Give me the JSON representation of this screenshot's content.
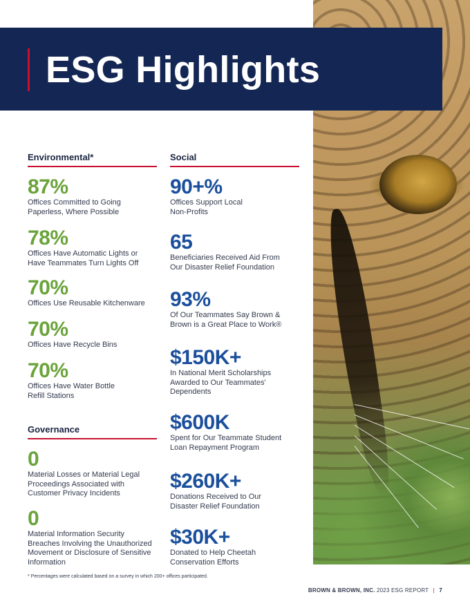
{
  "page": {
    "title": "ESG Highlights"
  },
  "environmental": {
    "heading": "Environmental*",
    "stats": [
      {
        "value": "87%",
        "label": "Offices Committed to Going Paperless, Where Possible"
      },
      {
        "value": "78%",
        "label": "Offices Have Automatic Lights or Have Teammates Turn Lights Off"
      },
      {
        "value": "70%",
        "label": "Offices Use Reusable Kitchenware"
      },
      {
        "value": "70%",
        "label": "Offices Have Recycle Bins"
      },
      {
        "value": "70%",
        "label": "Offices Have Water Bottle Refill Stations"
      }
    ]
  },
  "governance": {
    "heading": "Governance",
    "stats": [
      {
        "value": "0",
        "label": "Material Losses or Material Legal Proceedings Associated with Customer Privacy Incidents"
      },
      {
        "value": "0",
        "label": "Material Information Security Breaches Involving the Unauthorized Movement or Disclosure of Sensitive Information"
      }
    ]
  },
  "social": {
    "heading": "Social",
    "stats": [
      {
        "value": "90+%",
        "label": "Offices Support Local Non-Profits"
      },
      {
        "value": "65",
        "label": "Beneficiaries Received Aid From Our Disaster Relief Foundation"
      },
      {
        "value": "93%",
        "label": "Of Our Teammates Say Brown & Brown is a Great Place to Work®"
      },
      {
        "value": "$150K+",
        "label": "In National Merit Scholarships Awarded to Our Teammates' Dependents"
      },
      {
        "value": "$600K",
        "label": "Spent for Our Teammate Student Loan Repayment Program"
      },
      {
        "value": "$260K+",
        "label": "Donations Received to Our Disaster Relief Foundation"
      },
      {
        "value": "$30K+",
        "label": "Donated to Help Cheetah Conservation Efforts"
      }
    ]
  },
  "footnote": "* Percentages were calculated based on a survey in which 200+ offices participated.",
  "footer": {
    "company": "BROWN & BROWN, INC.",
    "report": "2023 ESG REPORT",
    "separator": "|",
    "page_number": "7"
  },
  "colors": {
    "navy": "#142653",
    "red_accent": "#c8102e",
    "green": "#6aa33a",
    "blue": "#1b4f9c"
  },
  "images": {
    "photo": "cheetah-face-photo"
  }
}
